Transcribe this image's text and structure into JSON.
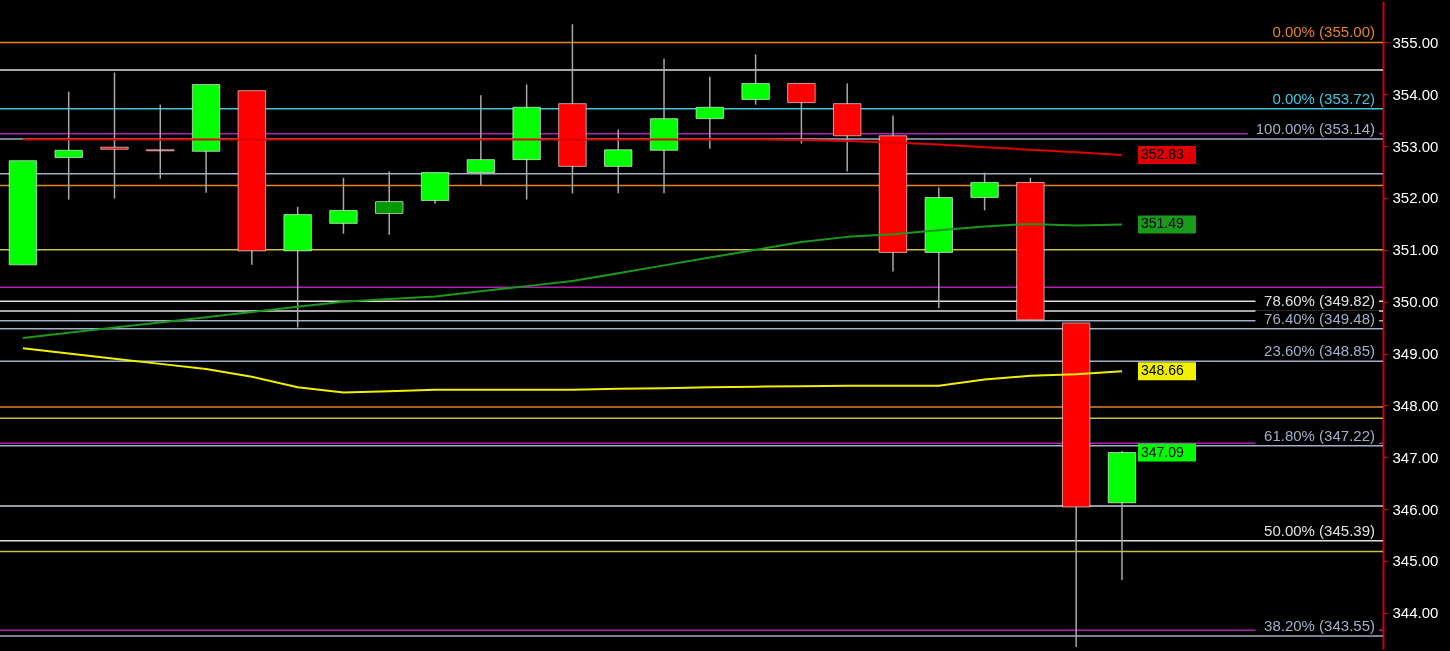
{
  "chart_data": {
    "type": "candlestick",
    "categories": [
      null,
      null,
      null,
      null,
      null,
      null,
      null,
      null,
      null,
      null,
      null,
      null,
      null,
      null,
      null,
      null,
      null,
      null,
      null,
      null,
      null,
      null,
      null,
      null,
      null
    ],
    "ohlc": [
      [
        350.71,
        352.72,
        350.71,
        352.72
      ],
      [
        352.78,
        354.05,
        351.97,
        352.92
      ],
      [
        352.98,
        354.42,
        351.99,
        352.94
      ],
      [
        352.93,
        353.8,
        352.37,
        352.91
      ],
      [
        352.9,
        354.19,
        352.1,
        354.19
      ],
      [
        354.07,
        354.07,
        350.71,
        350.98
      ],
      [
        350.98,
        351.83,
        349.5,
        351.68
      ],
      [
        351.51,
        352.39,
        351.31,
        351.76
      ],
      [
        351.7,
        352.51,
        351.29,
        351.93
      ],
      [
        351.95,
        352.49,
        351.89,
        352.49
      ],
      [
        352.49,
        353.98,
        352.24,
        352.74
      ],
      [
        352.74,
        354.19,
        351.97,
        353.75
      ],
      [
        353.82,
        355.35,
        352.09,
        352.61
      ],
      [
        352.61,
        353.32,
        352.09,
        352.93
      ],
      [
        352.92,
        354.69,
        352.09,
        353.53
      ],
      [
        353.53,
        354.34,
        352.95,
        353.75
      ],
      [
        353.9,
        354.77,
        353.8,
        354.21
      ],
      [
        354.21,
        354.21,
        353.05,
        353.84
      ],
      [
        353.82,
        354.21,
        352.51,
        353.2
      ],
      [
        353.2,
        353.59,
        350.58,
        350.95
      ],
      [
        350.95,
        352.2,
        349.88,
        352.01
      ],
      [
        352.01,
        352.49,
        351.76,
        352.3
      ],
      [
        352.3,
        352.39,
        349.65,
        349.65
      ],
      [
        349.59,
        349.59,
        343.34,
        346.04
      ],
      [
        346.12,
        347.12,
        344.63,
        347.09
      ]
    ],
    "colors": [
      "#00ff00",
      "#00ff00",
      "#ff0000",
      "#ff0000",
      "#00ff00",
      "#ff0000",
      "#00ff00",
      "#00ff00",
      "#009900",
      "#00ff00",
      "#00ff00",
      "#00ff00",
      "#ff0000",
      "#00ff00",
      "#00ff00",
      "#00ff00",
      "#00ff00",
      "#ff0000",
      "#ff0000",
      "#ff0000",
      "#00ff00",
      "#00ff00",
      "#ff0000",
      "#ff0000",
      "#00ff00"
    ],
    "series": [
      {
        "type": "line",
        "color": "#e00000",
        "values": [
          353.13,
          353.13,
          353.13,
          353.13,
          353.13,
          353.13,
          353.13,
          353.13,
          353.13,
          353.13,
          353.13,
          353.13,
          353.13,
          353.13,
          353.13,
          353.13,
          353.13,
          353.12,
          353.1,
          353.07,
          353.03,
          352.98,
          352.93,
          352.88,
          352.83
        ],
        "value_labels": [
          null,
          null,
          null,
          null,
          null,
          null,
          null,
          null,
          null,
          null,
          null,
          null,
          null,
          null,
          null,
          null,
          null,
          null,
          null,
          null,
          null,
          null,
          null,
          null,
          "352.83"
        ]
      },
      {
        "type": "line",
        "color": "#1a9a1a",
        "values": [
          349.3,
          349.4,
          349.5,
          349.6,
          349.7,
          349.8,
          349.9,
          350.0,
          350.05,
          350.1,
          350.2,
          350.3,
          350.4,
          350.55,
          350.7,
          350.85,
          351.0,
          351.15,
          351.25,
          351.3,
          351.38,
          351.45,
          351.5,
          351.47,
          351.49
        ],
        "value_labels": [
          null,
          null,
          null,
          null,
          null,
          null,
          null,
          null,
          null,
          null,
          null,
          null,
          null,
          null,
          null,
          null,
          null,
          null,
          null,
          null,
          null,
          null,
          null,
          null,
          "351.49"
        ]
      },
      {
        "type": "line",
        "color": "#f0f000",
        "values": [
          349.1,
          349.0,
          348.9,
          348.8,
          348.7,
          348.55,
          348.35,
          348.25,
          348.27,
          348.3,
          348.3,
          348.3,
          348.3,
          348.32,
          348.33,
          348.35,
          348.36,
          348.37,
          348.38,
          348.38,
          348.38,
          348.5,
          348.57,
          348.6,
          348.66
        ],
        "value_labels": [
          null,
          null,
          null,
          null,
          null,
          null,
          null,
          null,
          null,
          null,
          null,
          null,
          null,
          null,
          null,
          null,
          null,
          null,
          null,
          null,
          null,
          null,
          null,
          null,
          "348.66"
        ]
      }
    ],
    "ylim": [
      343.3,
      355.8
    ],
    "yticks": [
      {
        "value": 344,
        "label": "344.00"
      },
      {
        "value": 345,
        "label": "345.00"
      },
      {
        "value": 346,
        "label": "346.00"
      },
      {
        "value": 347,
        "label": "347.00"
      },
      {
        "value": 348,
        "label": "348.00"
      },
      {
        "value": 349,
        "label": "349.00"
      },
      {
        "value": 350,
        "label": "350.00"
      },
      {
        "value": 351,
        "label": "351.00"
      },
      {
        "value": 352,
        "label": "352.00"
      },
      {
        "value": 353,
        "label": "353.00"
      },
      {
        "value": 354,
        "label": "354.00"
      },
      {
        "value": 355,
        "label": "355.00"
      }
    ],
    "tick_labels": "y",
    "ref_lines": [
      {
        "axis": "y",
        "value": 355.0,
        "label": "0.00% (355.00)",
        "color": "#e8821e"
      },
      {
        "axis": "y",
        "value": 354.47,
        "color": "#e0e0e0"
      },
      {
        "axis": "y",
        "value": 353.72,
        "label": "0.00% (353.72)",
        "color": "#40c8e0"
      },
      {
        "axis": "y",
        "value": 353.24,
        "color": "#b020b0"
      },
      {
        "axis": "y",
        "value": 353.14,
        "label": "100.00% (353.14)",
        "color": "#a0b0c8"
      },
      {
        "axis": "y",
        "value": 352.47,
        "color": "#a0b0c8"
      },
      {
        "axis": "y",
        "value": 352.24,
        "color": "#e8821e"
      },
      {
        "axis": "y",
        "value": 351.0,
        "color": "#c8c040"
      },
      {
        "axis": "y",
        "value": 350.28,
        "color": "#b020b0"
      },
      {
        "axis": "y",
        "value": 350.01,
        "color": "#e0e0e0"
      },
      {
        "axis": "y",
        "value": 349.82,
        "label": "78.60% (349.82)",
        "color": "#e0e0e0"
      },
      {
        "axis": "y",
        "value": 349.63,
        "color": "#a0b0c8"
      },
      {
        "axis": "y",
        "value": 349.48,
        "label": "76.40% (349.48)",
        "color": "#a0b0c8"
      },
      {
        "axis": "y",
        "value": 348.85,
        "label": "23.60% (348.85)",
        "color": "#a0b0c8"
      },
      {
        "axis": "y",
        "value": 347.97,
        "color": "#e8821e"
      },
      {
        "axis": "y",
        "value": 347.75,
        "color": "#c8c040"
      },
      {
        "axis": "y",
        "value": 347.27,
        "color": "#b020b0"
      },
      {
        "axis": "y",
        "value": 347.22,
        "label": "61.80% (347.22)",
        "color": "#a0b0c8"
      },
      {
        "axis": "y",
        "value": 346.06,
        "color": "#c0d0e0"
      },
      {
        "axis": "y",
        "value": 345.39,
        "label": "50.00% (345.39)",
        "color": "#e0e0e0"
      },
      {
        "axis": "y",
        "value": 345.18,
        "color": "#c8c040"
      },
      {
        "axis": "y",
        "value": 343.66,
        "color": "#b020b0"
      },
      {
        "axis": "y",
        "value": 343.55,
        "label": "38.20% (343.55)",
        "color": "#a0b0c8"
      }
    ],
    "annotations": [
      "347.09"
    ]
  }
}
